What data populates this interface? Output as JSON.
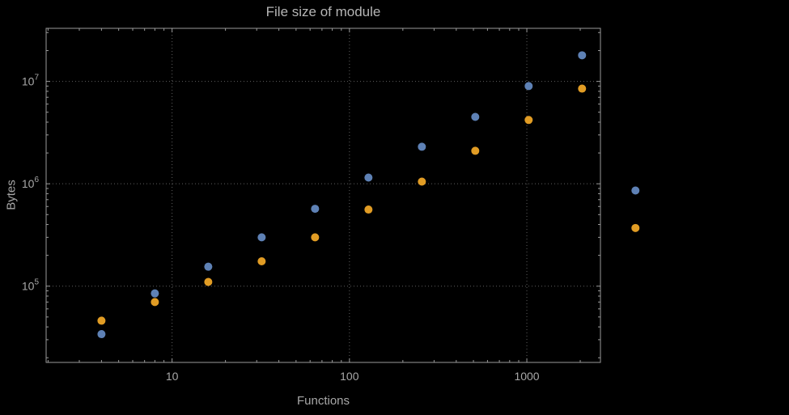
{
  "background_color": "#000000",
  "chart_data": {
    "type": "scatter",
    "title": "File size of module",
    "xlabel": "Functions",
    "ylabel": "Bytes",
    "x_scale": "log",
    "y_scale": "log",
    "xlim": [
      1.95,
      2600
    ],
    "ylim": [
      18000,
      33000000
    ],
    "grid": true,
    "legend": "none",
    "x": [
      4,
      8,
      16,
      32,
      64,
      128,
      256,
      512,
      1024,
      2048,
      4096
    ],
    "series": [
      {
        "name": "blue",
        "color": "#5e81b5",
        "values": [
          34000,
          85000,
          155000,
          300000,
          570000,
          1150000,
          2300000,
          4500000,
          9000000,
          18000000,
          860000
        ]
      },
      {
        "name": "orange",
        "color": "#e19c24",
        "values": [
          46000,
          70000,
          110000,
          175000,
          300000,
          560000,
          1050000,
          2100000,
          4200000,
          8500000,
          370000
        ]
      }
    ],
    "x_ticks": [
      {
        "value": 10,
        "label": "10"
      },
      {
        "value": 100,
        "label": "100"
      },
      {
        "value": 1000,
        "label": "1000"
      }
    ],
    "y_ticks": [
      {
        "value": 100000,
        "base": "10",
        "exponent": "5"
      },
      {
        "value": 1000000,
        "base": "10",
        "exponent": "6"
      },
      {
        "value": 10000000,
        "base": "10",
        "exponent": "7"
      }
    ],
    "frame_color": "#9a9a9a",
    "grid_color": "#5f5f5f",
    "text_color": "#a8a8a8",
    "marker_radius": 5
  }
}
